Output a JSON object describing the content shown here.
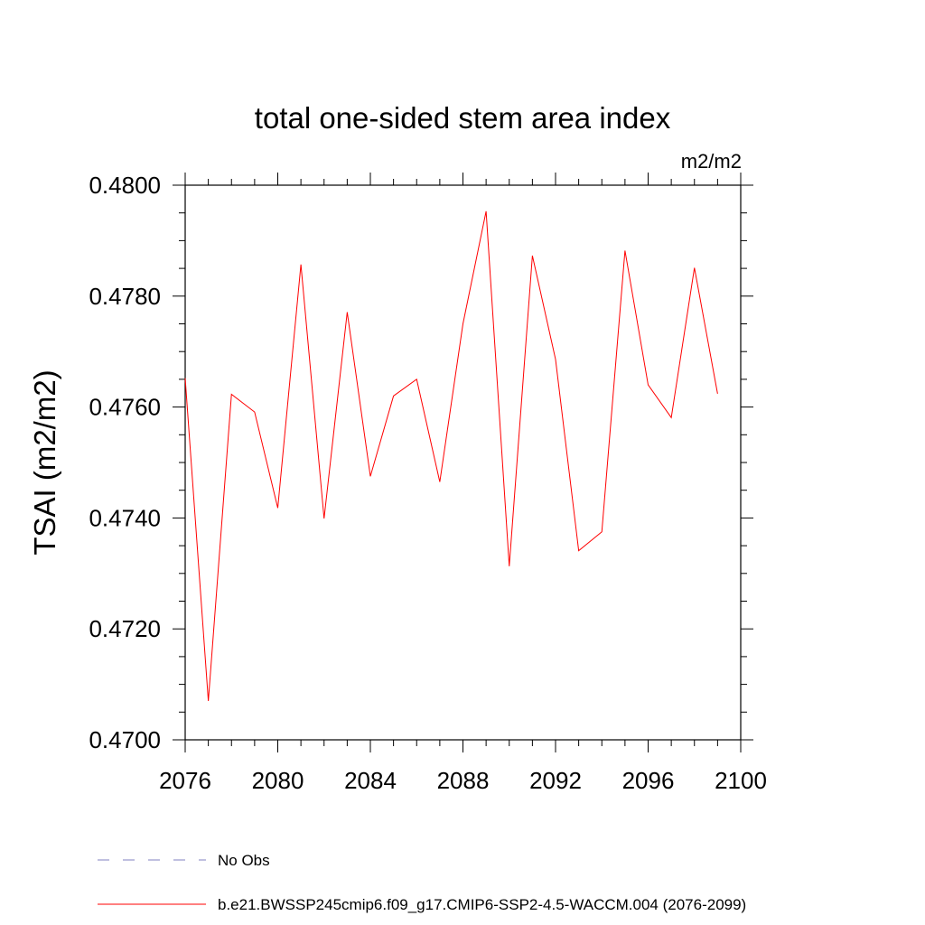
{
  "chart_data": {
    "type": "line",
    "title": "total one-sided stem area index",
    "units_label": "m2/m2",
    "ylabel": "TSAI  (m2/m2)",
    "xlabel": "",
    "xlim": [
      2076,
      2100
    ],
    "ylim": [
      0.47,
      0.48
    ],
    "x_ticks": [
      "2076",
      "2080",
      "2084",
      "2088",
      "2092",
      "2096",
      "2100"
    ],
    "y_ticks": [
      "0.4700",
      "0.4720",
      "0.4740",
      "0.4760",
      "0.4780",
      "0.4800"
    ],
    "grid": false,
    "legend_position": "bottom",
    "series": [
      {
        "name": "b.e21.BWSSP245cmip6.f09_g17.CMIP6-SSP2-4.5-WACCM.004 (2076-2099)",
        "color": "#ff0000",
        "style": "solid",
        "x": [
          2076,
          2077,
          2078,
          2079,
          2080,
          2081,
          2082,
          2083,
          2084,
          2085,
          2086,
          2087,
          2088,
          2089,
          2090,
          2091,
          2092,
          2093,
          2094,
          2095,
          2096,
          2097,
          2098,
          2099
        ],
        "values": [
          0.47652,
          0.4707,
          0.47623,
          0.47591,
          0.47418,
          0.47857,
          0.47399,
          0.47771,
          0.47475,
          0.4762,
          0.4765,
          0.47465,
          0.4775,
          0.47953,
          0.47313,
          0.47873,
          0.47686,
          0.47341,
          0.47375,
          0.47882,
          0.4764,
          0.47581,
          0.47851,
          0.47624
        ]
      }
    ],
    "legend": [
      {
        "label": "No Obs",
        "color": "#8080c0",
        "style": "dashed"
      },
      {
        "label": "b.e21.BWSSP245cmip6.f09_g17.CMIP6-SSP2-4.5-WACCM.004 (2076-2099)",
        "color": "#ff0000",
        "style": "solid"
      }
    ]
  }
}
